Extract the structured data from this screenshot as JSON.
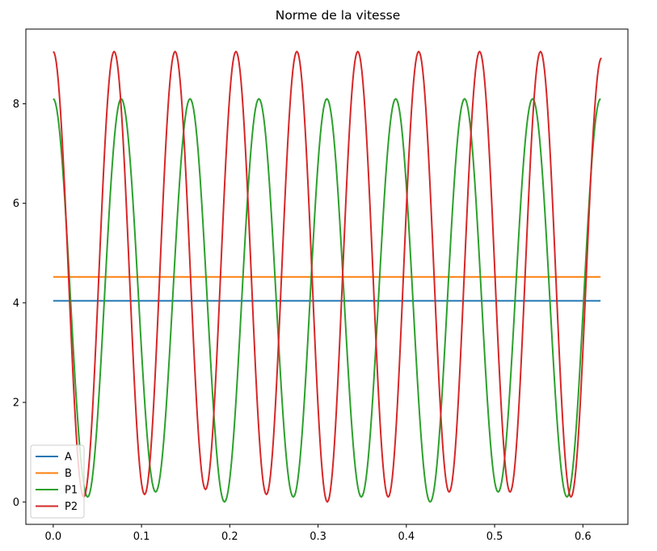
{
  "chart_data": {
    "type": "line",
    "title": "Norme de la vitesse",
    "xlabel": "",
    "ylabel": "",
    "xlim": [
      -0.031,
      0.651
    ],
    "ylim": [
      -0.45,
      9.5
    ],
    "xticks": [
      0.0,
      0.1,
      0.2,
      0.3,
      0.4,
      0.5,
      0.6
    ],
    "xtick_labels": [
      "0.0",
      "0.1",
      "0.2",
      "0.3",
      "0.4",
      "0.5",
      "0.6"
    ],
    "yticks": [
      0,
      2,
      4,
      6,
      8
    ],
    "ytick_labels": [
      "0",
      "2",
      "4",
      "6",
      "8"
    ],
    "grid": false,
    "legend_position": "lower-left",
    "series": [
      {
        "name": "A",
        "color": "#1f77b4",
        "x": [
          0.0,
          0.62
        ],
        "y": [
          4.04,
          4.04
        ]
      },
      {
        "name": "B",
        "color": "#ff7f0e",
        "x": [
          0.0,
          0.62
        ],
        "y": [
          4.52,
          4.52
        ]
      },
      {
        "name": "P1",
        "color": "#2ca02c",
        "x": [
          0.0,
          0.039,
          0.077,
          0.116,
          0.155,
          0.194,
          0.233,
          0.272,
          0.31,
          0.349,
          0.388,
          0.427,
          0.466,
          0.504,
          0.543,
          0.582,
          0.62
        ],
        "y": [
          8.1,
          0.1,
          8.1,
          0.2,
          8.1,
          0.0,
          8.1,
          0.1,
          8.1,
          0.1,
          8.1,
          0.0,
          8.1,
          0.2,
          8.1,
          0.1,
          8.1
        ]
      },
      {
        "name": "P2",
        "color": "#d62728",
        "x": [
          0.0,
          0.0345,
          0.069,
          0.1035,
          0.138,
          0.1725,
          0.207,
          0.2415,
          0.276,
          0.3105,
          0.345,
          0.3795,
          0.414,
          0.4485,
          0.483,
          0.5175,
          0.552,
          0.5865,
          0.621
        ],
        "y": [
          9.05,
          0.1,
          9.05,
          0.15,
          9.05,
          0.25,
          9.05,
          0.15,
          9.05,
          0.0,
          9.05,
          0.1,
          9.05,
          0.2,
          9.05,
          0.2,
          9.05,
          0.1,
          8.92
        ]
      }
    ]
  }
}
